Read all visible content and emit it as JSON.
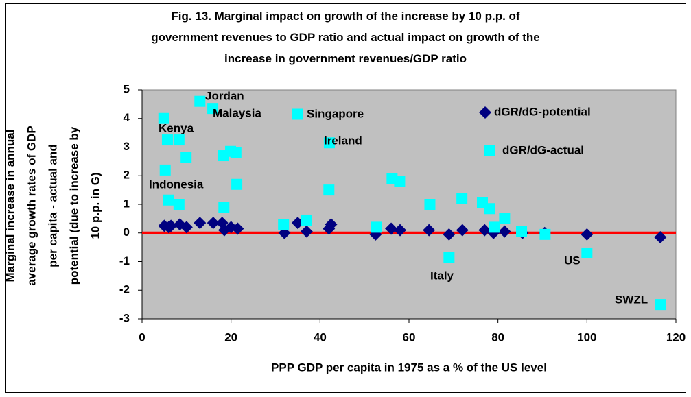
{
  "chart_data": {
    "type": "scatter",
    "title": "Fig. 13. Marginal impact on growth of the increase by 10 p.p. of\ngovernment revenues to GDP ratio and actual impact on growth of the\nincrease in government revenues/GDP ratio",
    "xlabel": "PPP GDP per capita in 1975 as a % of the US level",
    "ylabel": "Marginal increase in annual\naverage growth rates of GDP\nper capita - actual and\npotential (due to increase by\n10 p.p. in G)",
    "xlim": [
      0,
      120
    ],
    "xticks": [
      0,
      20,
      40,
      60,
      80,
      100,
      120
    ],
    "ylim": [
      -3,
      5
    ],
    "yticks": [
      -3,
      -2,
      -1,
      0,
      1,
      2,
      3,
      4,
      5
    ],
    "grid": false,
    "legend": "upper right",
    "zero_line_color": "#ff0000",
    "plot_background": "#c0c0c0",
    "series": [
      {
        "name": "dGR/dG-potential",
        "color": "#000080",
        "marker": "diamond",
        "x": [
          5,
          6,
          6.5,
          8.5,
          10,
          13,
          16,
          18,
          18.5,
          20,
          21.5,
          32,
          35,
          37,
          42,
          42.5,
          52.5,
          56,
          58,
          64.5,
          69,
          72,
          77,
          79,
          81.5,
          85.5,
          90.5,
          100,
          116.5
        ],
        "values": [
          0.25,
          0.2,
          0.25,
          0.3,
          0.2,
          0.35,
          0.35,
          0.35,
          0.1,
          0.2,
          0.15,
          0,
          0.35,
          0.05,
          0.15,
          0.3,
          -0.05,
          0.15,
          0.1,
          0.1,
          -0.05,
          0.1,
          0.1,
          0,
          0.05,
          0,
          0,
          -0.05,
          -0.15
        ]
      },
      {
        "name": "dGR/dG-actual",
        "color": "#00ffff",
        "marker": "square",
        "x": [
          4.9,
          5.7,
          5.2,
          5.9,
          8.3,
          8.3,
          9.9,
          13,
          15.9,
          18.2,
          18.4,
          19.9,
          21.1,
          21.3,
          31.8,
          34.9,
          37,
          42.1,
          42,
          52.6,
          56.2,
          57.9,
          64.7,
          69,
          71.9,
          76.5,
          78.2,
          79.2,
          81.5,
          85.3,
          90.6,
          100,
          116.5
        ],
        "values": [
          4,
          3.25,
          2.2,
          1.15,
          3.25,
          1,
          2.65,
          4.6,
          4.35,
          2.7,
          0.9,
          2.85,
          2.8,
          1.7,
          0.3,
          4.15,
          0.45,
          3.15,
          1.5,
          0.2,
          1.9,
          1.8,
          1,
          -0.85,
          1.2,
          1.05,
          0.85,
          0.2,
          0.5,
          0.05,
          -0.05,
          -0.7,
          -2.5
        ]
      }
    ],
    "annotations": [
      "Jordan",
      "Malaysia",
      "Singapore",
      "Kenya",
      "Ireland",
      "Indonesia",
      "Italy",
      "US",
      "SWZL"
    ]
  }
}
